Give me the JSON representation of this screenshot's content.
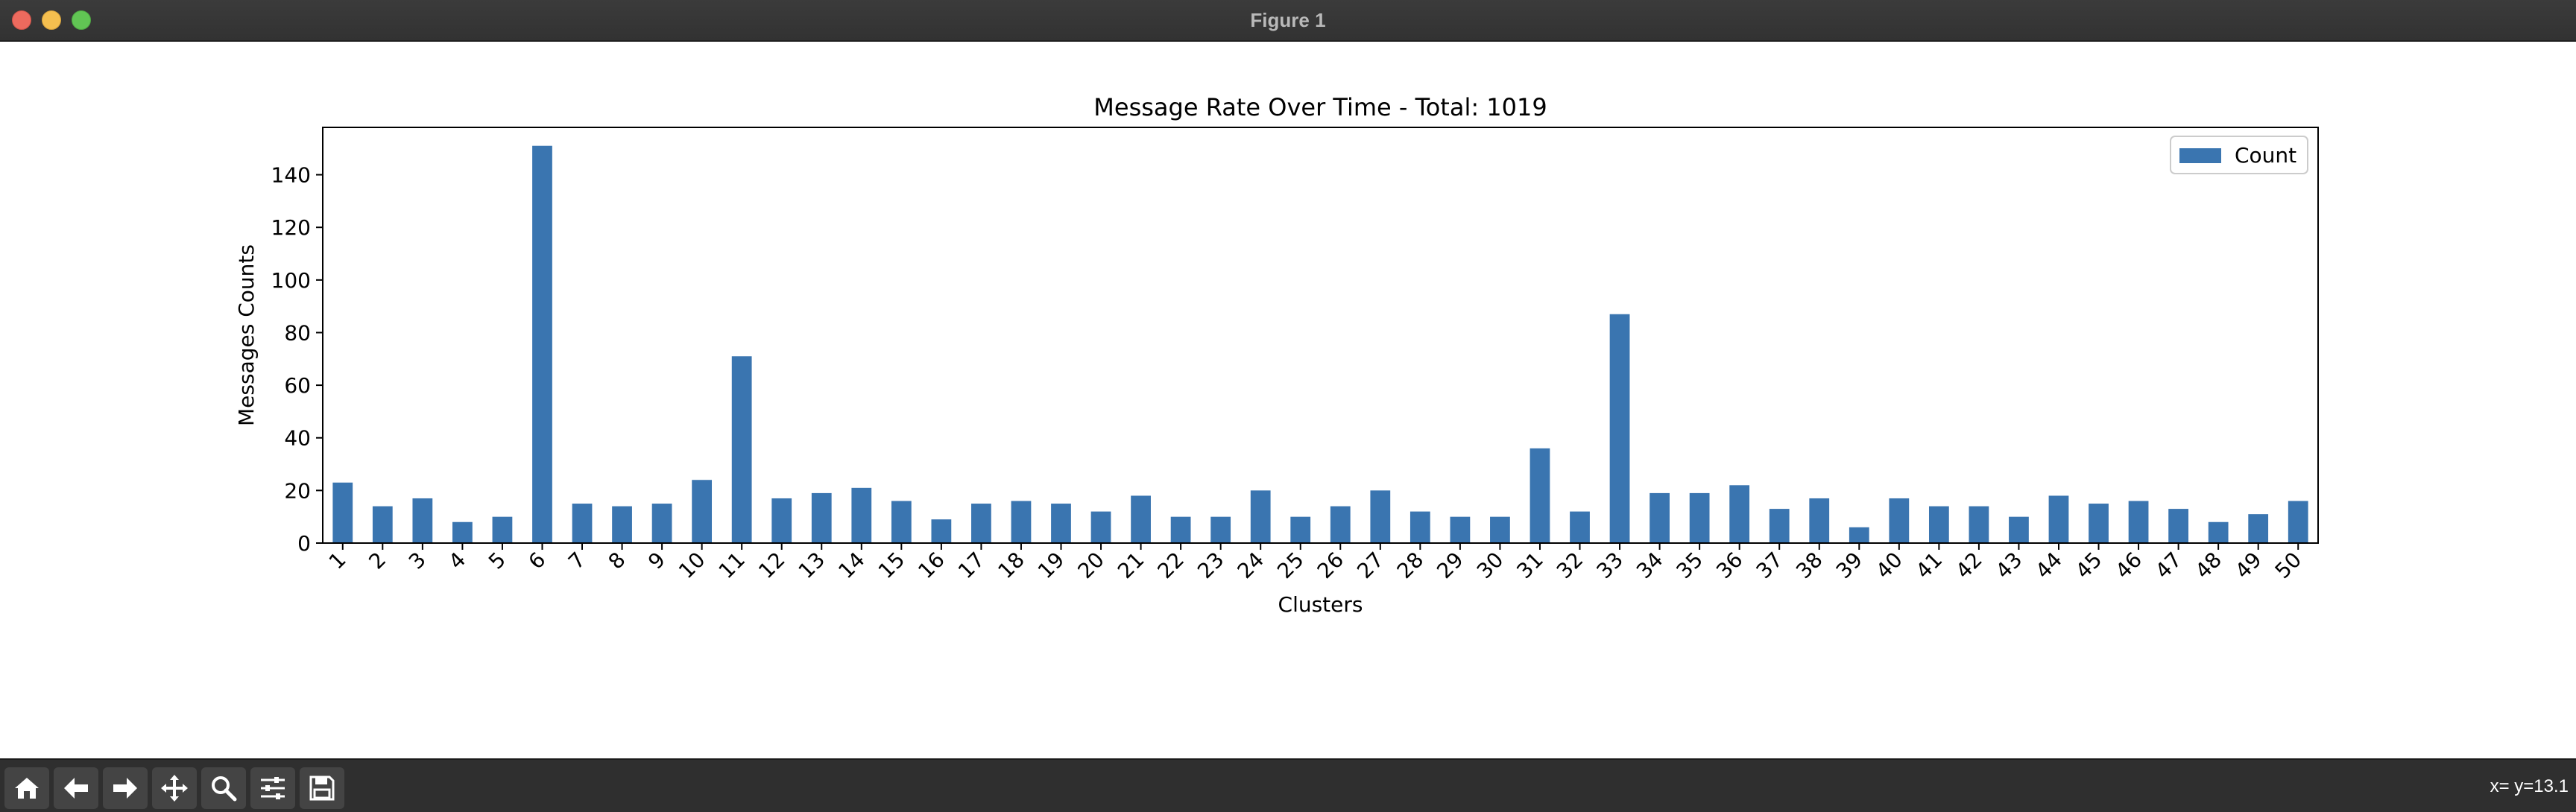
{
  "window": {
    "title": "Figure 1"
  },
  "toolbar": {
    "buttons": [
      {
        "name": "home-button",
        "icon": "home-icon"
      },
      {
        "name": "back-button",
        "icon": "arrow-left-icon"
      },
      {
        "name": "forward-button",
        "icon": "arrow-right-icon"
      },
      {
        "name": "pan-button",
        "icon": "move-icon"
      },
      {
        "name": "zoom-button",
        "icon": "search-icon"
      },
      {
        "name": "configure-subplots-button",
        "icon": "sliders-icon"
      },
      {
        "name": "save-button",
        "icon": "save-icon"
      }
    ],
    "coords": "x= y=13.1"
  },
  "colors": {
    "bar": "#3a75b0",
    "titlebar": "#353535",
    "toolbar": "#2f2f2f"
  },
  "chart_data": {
    "type": "bar",
    "title": "Message Rate Over Time - Total: 1019",
    "xlabel": "Clusters",
    "ylabel": "Messages Counts",
    "categories": [
      "1",
      "2",
      "3",
      "4",
      "5",
      "6",
      "7",
      "8",
      "9",
      "10",
      "11",
      "12",
      "13",
      "14",
      "15",
      "16",
      "17",
      "18",
      "19",
      "20",
      "21",
      "22",
      "23",
      "24",
      "25",
      "26",
      "27",
      "28",
      "29",
      "30",
      "31",
      "32",
      "33",
      "34",
      "35",
      "36",
      "37",
      "38",
      "39",
      "40",
      "41",
      "42",
      "43",
      "44",
      "45",
      "46",
      "47",
      "48",
      "49",
      "50"
    ],
    "series": [
      {
        "name": "Count",
        "values": [
          23,
          14,
          17,
          8,
          10,
          151,
          15,
          14,
          15,
          24,
          71,
          17,
          19,
          21,
          16,
          9,
          15,
          16,
          15,
          12,
          18,
          10,
          10,
          20,
          10,
          14,
          20,
          12,
          10,
          10,
          36,
          12,
          87,
          19,
          19,
          22,
          13,
          17,
          6,
          17,
          14,
          14,
          10,
          18,
          15,
          16,
          13,
          8,
          11,
          16
        ]
      }
    ],
    "ylim": [
      0,
      158
    ],
    "yticks": [
      0,
      20,
      40,
      60,
      80,
      100,
      120,
      140
    ],
    "legend": "top-right",
    "grid": false,
    "xtick_rotation": 45
  }
}
